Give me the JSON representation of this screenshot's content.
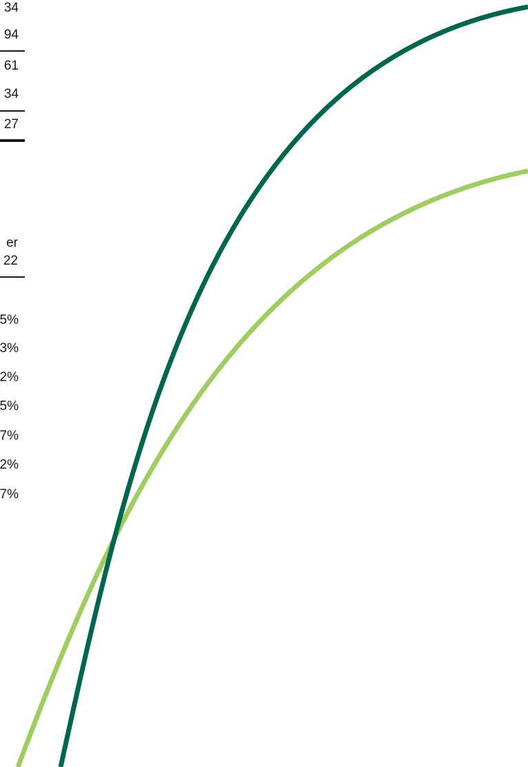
{
  "table_top": {
    "rows": [
      "34",
      "94",
      "61",
      "34",
      "27"
    ]
  },
  "table_bottom": {
    "header_line1": "er",
    "header_line2": "22",
    "rows": [
      "5%",
      "3%",
      "2%",
      "5%",
      "7%",
      "2%",
      "7%"
    ]
  },
  "colors": {
    "dark_curve": "#00664f",
    "light_curve": "#9fcd5f"
  }
}
